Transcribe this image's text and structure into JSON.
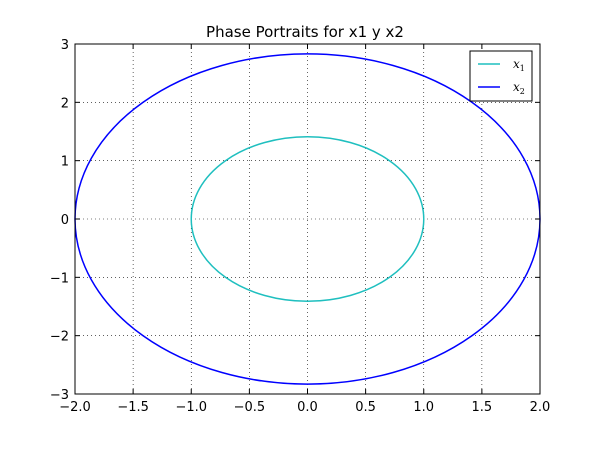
{
  "chart_data": {
    "type": "line",
    "title": "Phase Portraits for x1 y x2",
    "xlabel": "",
    "ylabel": "",
    "xlim": [
      -2.0,
      2.0
    ],
    "ylim": [
      -3,
      3
    ],
    "x_ticks": [
      -2.0,
      -1.5,
      -1.0,
      -0.5,
      0.0,
      0.5,
      1.0,
      1.5,
      2.0
    ],
    "y_ticks": [
      -3,
      -2,
      -1,
      0,
      1,
      2,
      3
    ],
    "x_tick_labels": [
      "−2.0",
      "−1.5",
      "−1.0",
      "−0.5",
      "0.0",
      "0.5",
      "1.0",
      "1.5",
      "2.0"
    ],
    "y_tick_labels": [
      "−3",
      "−2",
      "−1",
      "0",
      "1",
      "2",
      "3"
    ],
    "grid": true,
    "legend_position": "top-right",
    "series": [
      {
        "name": "x",
        "subscript": "1",
        "color": "#1fbfbf",
        "shape": "ellipse",
        "center": [
          0,
          0
        ],
        "x_semi_axis": 1.0,
        "y_semi_axis": 1.41
      },
      {
        "name": "x",
        "subscript": "2",
        "color": "#0000ff",
        "shape": "ellipse",
        "center": [
          0,
          0
        ],
        "x_semi_axis": 2.0,
        "y_semi_axis": 2.83
      }
    ]
  }
}
